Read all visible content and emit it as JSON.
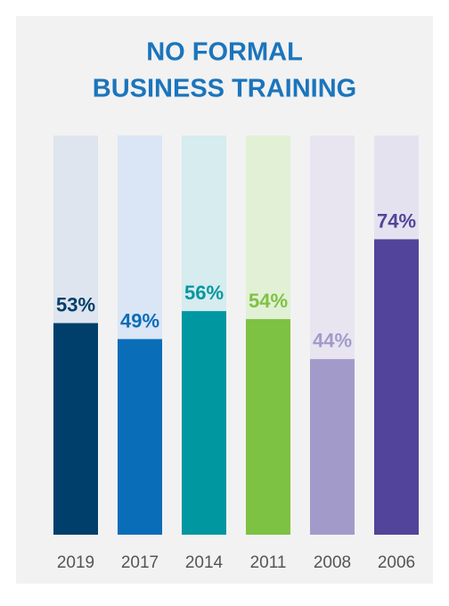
{
  "chart_data": {
    "type": "bar",
    "title": [
      "NO FORMAL",
      "BUSINESS TRAINING"
    ],
    "categories": [
      "2019",
      "2017",
      "2014",
      "2011",
      "2008",
      "2006"
    ],
    "values": [
      53,
      49,
      56,
      54,
      44,
      74
    ],
    "value_labels": [
      "53%",
      "49%",
      "56%",
      "54%",
      "44%",
      "74%"
    ],
    "colors": [
      "#003f6b",
      "#0a6db8",
      "#0097a0",
      "#7dc242",
      "#a29bca",
      "#52449a"
    ],
    "track_colors": [
      "#dfe5ee",
      "#dae6f5",
      "#d6ecee",
      "#e2f0d6",
      "#e8e5f1",
      "#e5e2f0"
    ],
    "ylim": [
      0,
      100
    ]
  }
}
